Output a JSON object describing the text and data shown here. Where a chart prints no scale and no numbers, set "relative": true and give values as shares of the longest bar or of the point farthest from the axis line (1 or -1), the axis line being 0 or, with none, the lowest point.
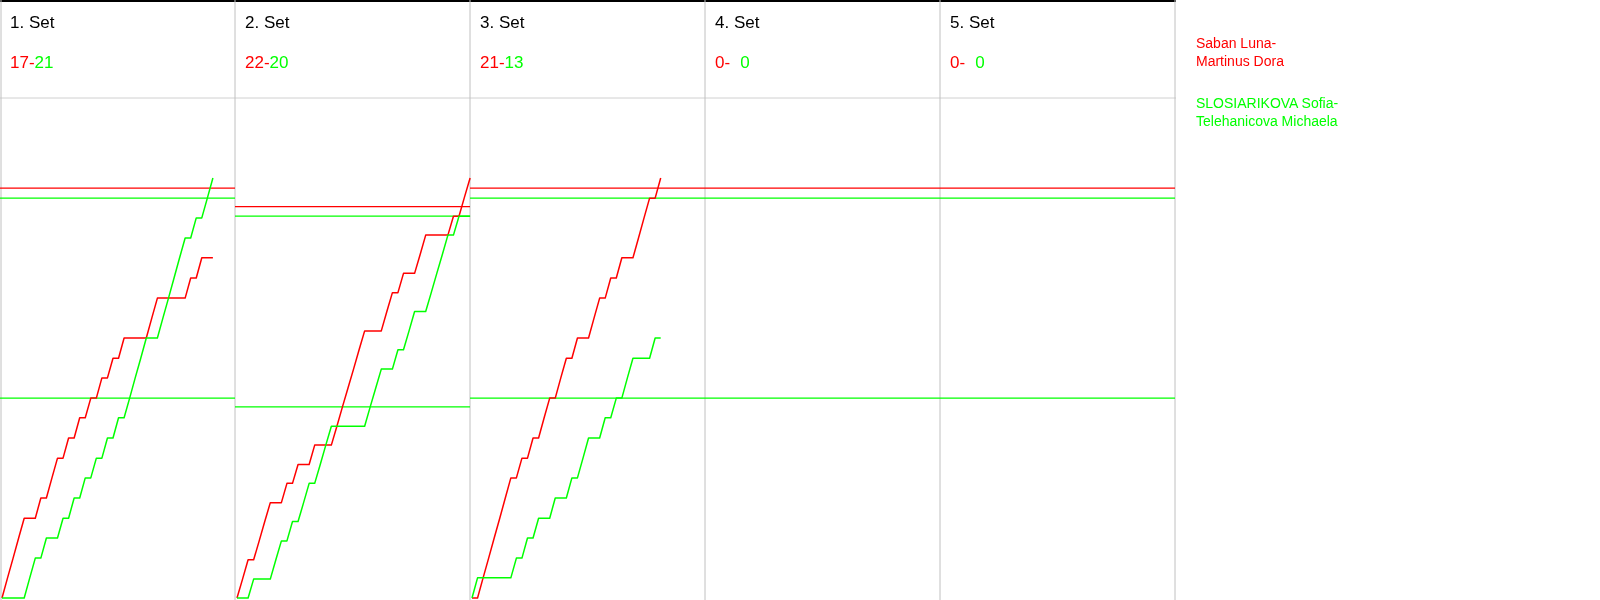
{
  "chart_data": [
    {
      "type": "line",
      "title": "1. Set",
      "annotations": [
        "17-",
        "21"
      ],
      "relative": true,
      "categories": [
        null,
        null,
        null,
        null,
        null,
        null,
        null,
        null,
        null,
        null,
        null,
        null,
        null,
        null,
        null,
        null,
        null,
        null,
        null,
        null,
        null,
        null,
        null,
        null,
        null,
        null,
        null,
        null,
        null,
        null,
        null,
        null,
        null,
        null,
        null,
        null,
        null,
        null,
        null,
        null,
        null,
        null,
        null,
        null
      ],
      "ref_lines": [
        {
          "axis": "y",
          "value": 0.976,
          "color": "#ff0000"
        },
        {
          "axis": "y",
          "value": 0.952,
          "color": "#00ff00"
        },
        {
          "axis": "y",
          "value": 0.476,
          "color": "#00ff00"
        }
      ],
      "series": [
        {
          "color": "#ff0000",
          "values": [
            0,
            0.048,
            0.095,
            0.143,
            0.19,
            0.19,
            0.19,
            0.238,
            0.238,
            0.286,
            0.333,
            0.333,
            0.381,
            0.381,
            0.429,
            0.429,
            0.476,
            0.476,
            0.524,
            0.524,
            0.571,
            0.571,
            0.619,
            0.619,
            0.619,
            0.619,
            0.619,
            0.667,
            0.714,
            0.714,
            0.714,
            0.714,
            0.714,
            0.714,
            0.762,
            0.762,
            0.81,
            0.81,
            0.81,
            null,
            null,
            null,
            null,
            null
          ]
        },
        {
          "color": "#00ff00",
          "values": [
            0,
            0,
            0,
            0,
            0,
            0.048,
            0.095,
            0.095,
            0.143,
            0.143,
            0.143,
            0.19,
            0.19,
            0.238,
            0.238,
            0.286,
            0.286,
            0.333,
            0.333,
            0.381,
            0.381,
            0.429,
            0.429,
            0.476,
            0.524,
            0.571,
            0.619,
            0.619,
            0.619,
            0.667,
            0.714,
            0.762,
            0.81,
            0.857,
            0.857,
            0.905,
            0.905,
            0.952,
            1,
            null,
            null,
            null,
            null,
            null
          ]
        }
      ]
    },
    {
      "type": "line",
      "title": "2. Set",
      "annotations": [
        "22-",
        "20"
      ],
      "relative": true,
      "categories": [
        null,
        null,
        null,
        null,
        null,
        null,
        null,
        null,
        null,
        null,
        null,
        null,
        null,
        null,
        null,
        null,
        null,
        null,
        null,
        null,
        null,
        null,
        null,
        null,
        null,
        null,
        null,
        null,
        null,
        null,
        null,
        null,
        null,
        null,
        null,
        null,
        null,
        null,
        null,
        null,
        null,
        null,
        null,
        null
      ],
      "ref_lines": [
        {
          "axis": "y",
          "value": 0.932,
          "color": "#ff0000"
        },
        {
          "axis": "y",
          "value": 0.909,
          "color": "#00ff00"
        },
        {
          "axis": "y",
          "value": 0.455,
          "color": "#00ff00"
        }
      ],
      "series": [
        {
          "color": "#ff0000",
          "values": [
            0,
            0.045,
            0.091,
            0.091,
            0.136,
            0.182,
            0.227,
            0.227,
            0.227,
            0.273,
            0.273,
            0.318,
            0.318,
            0.318,
            0.364,
            0.364,
            0.364,
            0.364,
            0.409,
            0.455,
            0.5,
            0.545,
            0.591,
            0.636,
            0.636,
            0.636,
            0.636,
            0.682,
            0.727,
            0.727,
            0.773,
            0.773,
            0.773,
            0.818,
            0.864,
            0.864,
            0.864,
            0.864,
            0.864,
            0.909,
            0.909,
            0.955,
            1,
            null
          ]
        },
        {
          "color": "#00ff00",
          "values": [
            0,
            0,
            0,
            0.045,
            0.045,
            0.045,
            0.045,
            0.091,
            0.136,
            0.136,
            0.182,
            0.182,
            0.227,
            0.273,
            0.273,
            0.318,
            0.364,
            0.409,
            0.409,
            0.409,
            0.409,
            0.409,
            0.409,
            0.409,
            0.455,
            0.5,
            0.545,
            0.545,
            0.545,
            0.591,
            0.591,
            0.636,
            0.682,
            0.682,
            0.682,
            0.727,
            0.773,
            0.818,
            0.864,
            0.864,
            0.909,
            0.909,
            0.909,
            null
          ]
        }
      ]
    },
    {
      "type": "line",
      "title": "3. Set",
      "annotations": [
        "21-",
        "13"
      ],
      "relative": true,
      "categories": [
        null,
        null,
        null,
        null,
        null,
        null,
        null,
        null,
        null,
        null,
        null,
        null,
        null,
        null,
        null,
        null,
        null,
        null,
        null,
        null,
        null,
        null,
        null,
        null,
        null,
        null,
        null,
        null,
        null,
        null,
        null,
        null,
        null,
        null,
        null,
        null,
        null,
        null,
        null,
        null,
        null,
        null,
        null,
        null
      ],
      "ref_lines": [
        {
          "axis": "y",
          "value": 0.976,
          "color": "#ff0000"
        },
        {
          "axis": "y",
          "value": 0.952,
          "color": "#00ff00"
        },
        {
          "axis": "y",
          "value": 0.476,
          "color": "#00ff00"
        }
      ],
      "series": [
        {
          "name": "Saban Luna-Martinus Dora",
          "color": "#ff0000",
          "values": [
            0,
            0,
            0.048,
            0.095,
            0.143,
            0.19,
            0.238,
            0.286,
            0.286,
            0.333,
            0.333,
            0.381,
            0.381,
            0.429,
            0.476,
            0.476,
            0.524,
            0.571,
            0.571,
            0.619,
            0.619,
            0.619,
            0.667,
            0.714,
            0.714,
            0.762,
            0.762,
            0.81,
            0.81,
            0.81,
            0.857,
            0.905,
            0.952,
            0.952,
            1,
            null,
            null,
            null,
            null,
            null,
            null,
            null,
            null,
            null
          ]
        },
        {
          "name": "SLOSIARIKOVA Sofia-Telehanicova Michaela",
          "color": "#00ff00",
          "values": [
            0,
            0.048,
            0.048,
            0.048,
            0.048,
            0.048,
            0.048,
            0.048,
            0.095,
            0.095,
            0.143,
            0.143,
            0.19,
            0.19,
            0.19,
            0.238,
            0.238,
            0.238,
            0.286,
            0.286,
            0.333,
            0.381,
            0.381,
            0.381,
            0.429,
            0.429,
            0.476,
            0.476,
            0.524,
            0.571,
            0.571,
            0.571,
            0.571,
            0.619,
            0.619,
            null,
            null,
            null,
            null,
            null,
            null,
            null,
            null,
            null
          ]
        }
      ]
    },
    {
      "type": "other",
      "title": "4. Set",
      "annotations": [
        "0-",
        "0"
      ]
    },
    {
      "type": "other",
      "title": "5. Set",
      "annotations": [
        "0-",
        "0"
      ]
    }
  ]
}
